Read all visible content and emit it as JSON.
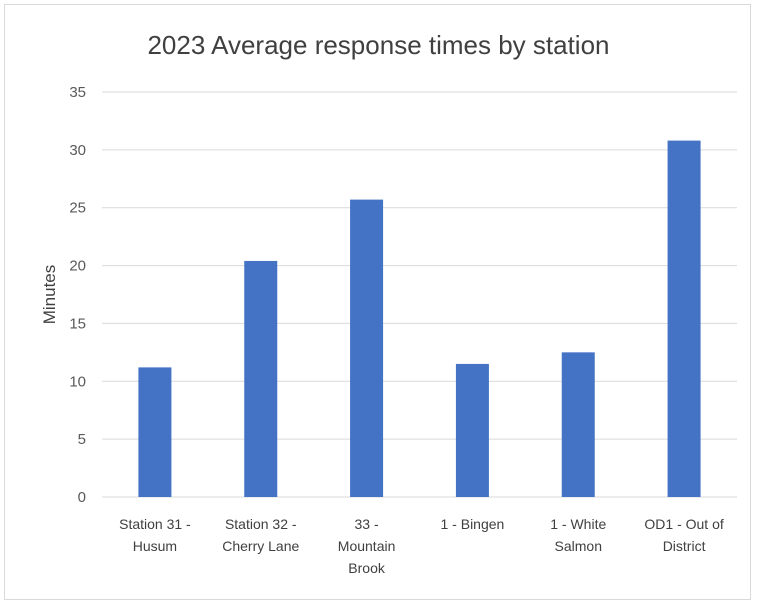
{
  "chart_data": {
    "type": "bar",
    "title": "2023 Average response times by station",
    "ylabel": "Minutes",
    "xlabel": "",
    "categories": [
      [
        "Station 31 -",
        "Husum"
      ],
      [
        "Station 32 -",
        "Cherry Lane"
      ],
      [
        "33 -",
        "Mountain",
        "Brook"
      ],
      [
        "1 - Bingen"
      ],
      [
        "1 - White",
        "Salmon"
      ],
      [
        "OD1 - Out of",
        "District"
      ]
    ],
    "values": [
      11.2,
      20.4,
      25.7,
      11.5,
      12.5,
      30.8
    ],
    "ylim": [
      0,
      35
    ],
    "yticks": [
      0,
      5,
      10,
      15,
      20,
      25,
      30,
      35
    ],
    "grid": true,
    "bar_color": "#4472c4",
    "grid_color": "#d9d9d9"
  }
}
